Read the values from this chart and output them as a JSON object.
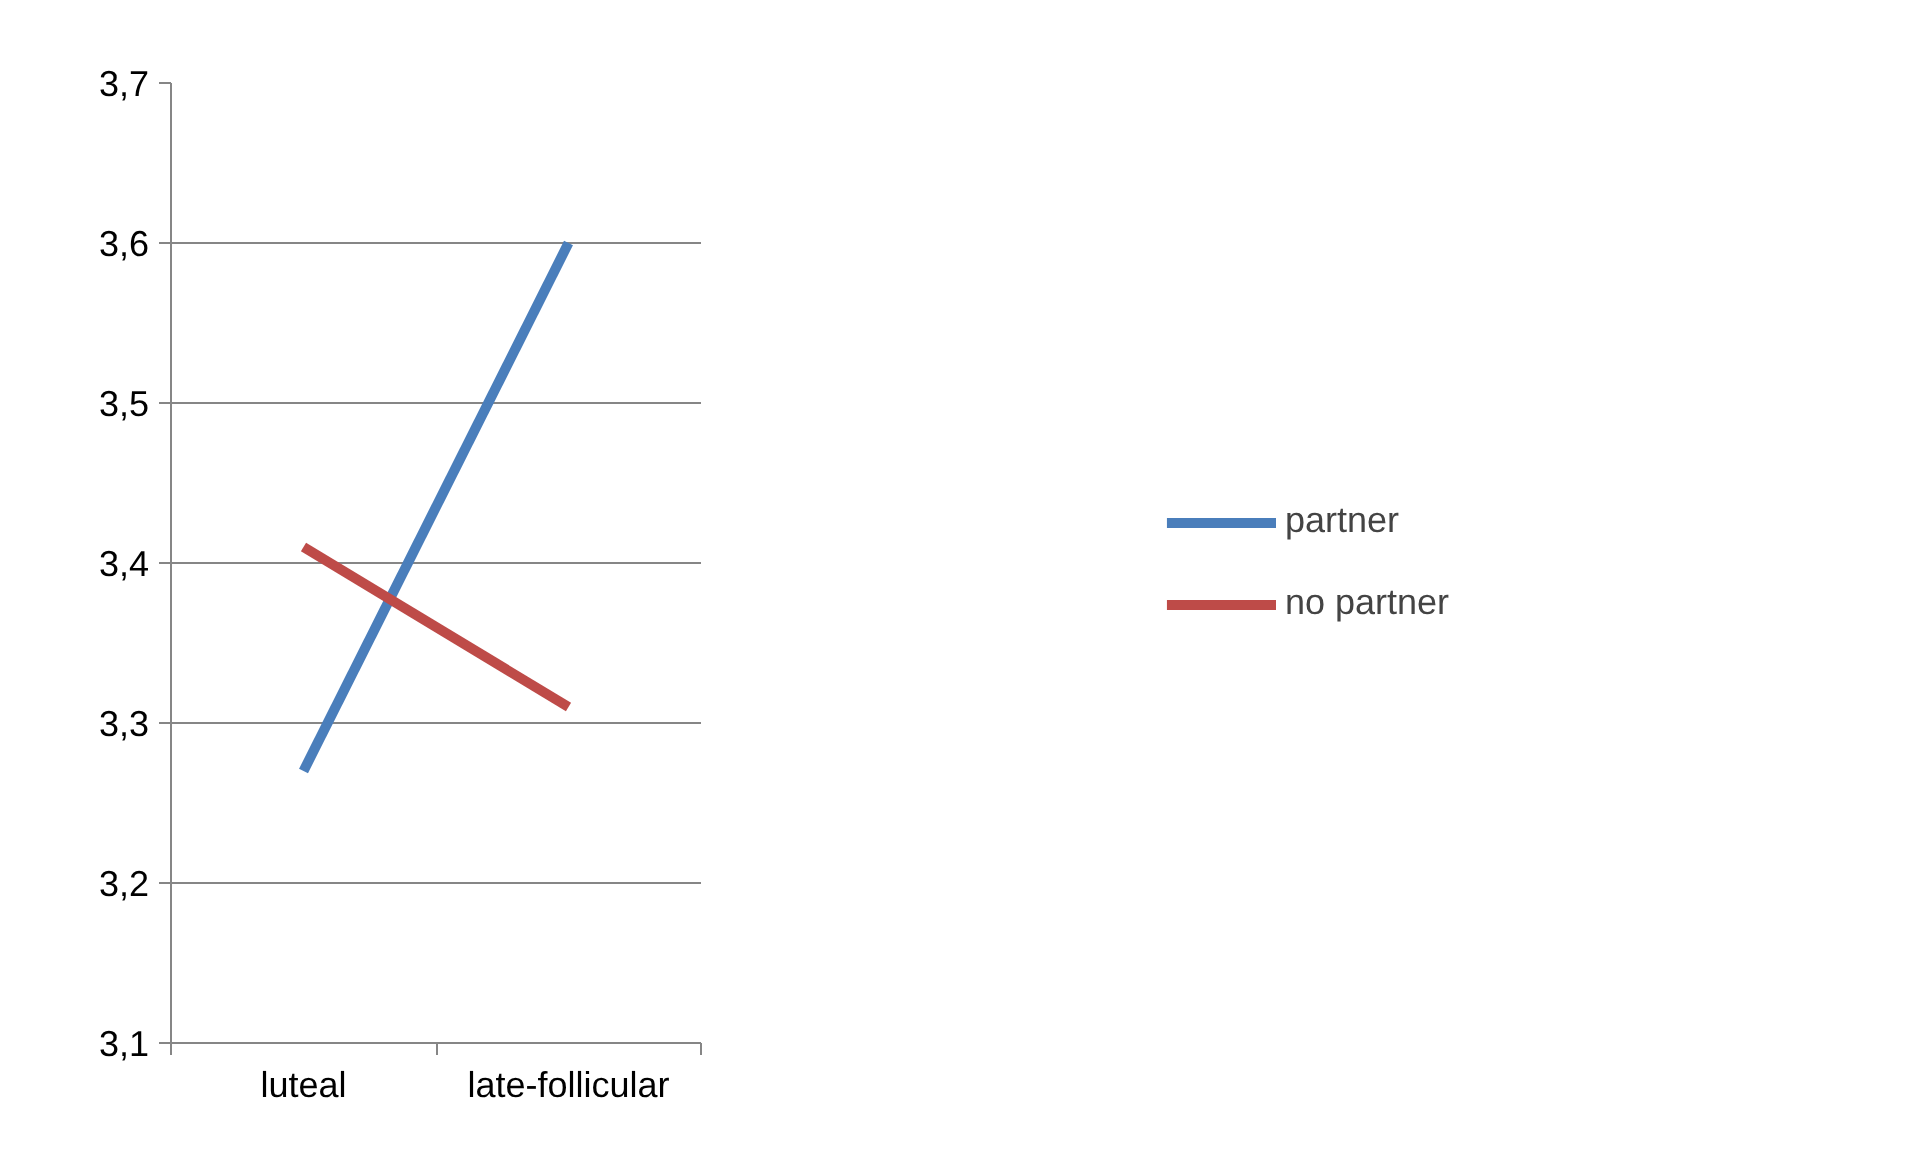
{
  "chart_data": {
    "type": "line",
    "categories": [
      "luteal",
      "late-follicular"
    ],
    "series": [
      {
        "name": "partner",
        "color": "#4a7ebb",
        "values": [
          3.27,
          3.6
        ]
      },
      {
        "name": "no partner",
        "color": "#be4b48",
        "values": [
          3.41,
          3.31
        ]
      }
    ],
    "ylim": [
      3.1,
      3.7
    ],
    "yticks": [
      {
        "value": 3.1,
        "label": "3,1"
      },
      {
        "value": 3.2,
        "label": "3,2"
      },
      {
        "value": 3.3,
        "label": "3,3"
      },
      {
        "value": 3.4,
        "label": "3,4"
      },
      {
        "value": 3.5,
        "label": "3,5"
      },
      {
        "value": 3.6,
        "label": "3,6"
      },
      {
        "value": 3.7,
        "label": "3,7"
      }
    ],
    "grid": "y",
    "legend": "right",
    "marker": "none",
    "line_style": "solid"
  }
}
